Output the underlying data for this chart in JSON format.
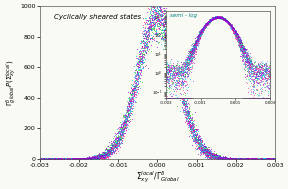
{
  "title": "Cyclically sheared states",
  "xlabel": "$\\Sigma_{xy}^{local}/\\Gamma_{Global}^{\\delta}$",
  "ylabel": "$\\Gamma_{global}^{\\delta}P(\\Sigma_{xy}^{local})$",
  "xlim": [
    -0.003,
    0.003
  ],
  "ylim": [
    0,
    1000
  ],
  "inset_label": "semi - log",
  "colors": [
    "#9400D3",
    "#1E90FF",
    "#32CD32",
    "#FF1493",
    "#00CED1"
  ],
  "bg_color": "#FAFAF5",
  "num_curves": 6,
  "sigmas": [
    0.00048,
    0.0005,
    0.00052,
    0.00049,
    0.00051,
    0.00053
  ],
  "peaks": [
    970,
    920,
    900,
    950,
    940,
    910
  ],
  "noise_scale": 4.0,
  "seed": 12
}
